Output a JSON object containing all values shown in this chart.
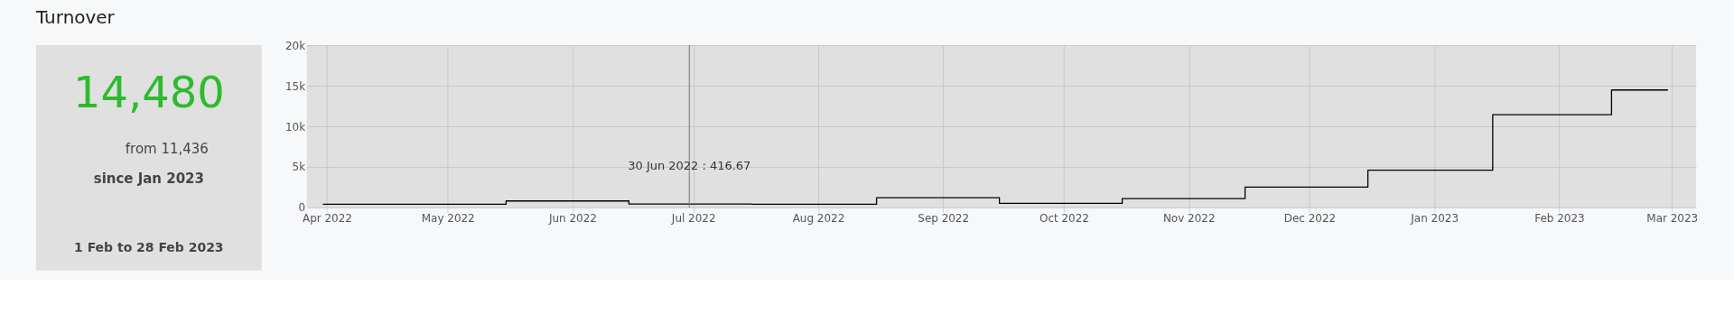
{
  "chart_data": {
    "type": "step",
    "title": "Turnover",
    "x": [
      "2022-03-31",
      "2022-04-30",
      "2022-05-31",
      "2022-06-30",
      "2022-07-31",
      "2022-08-31",
      "2022-09-30",
      "2022-10-31",
      "2022-11-30",
      "2022-12-31",
      "2023-01-31",
      "2023-02-28"
    ],
    "series": [
      {
        "color": "#000000",
        "values": [
          400,
          400,
          800,
          416.67,
          400,
          1200,
          500,
          1100,
          2500,
          4600,
          11436,
          14480
        ]
      }
    ],
    "xlim": [
      "2022-03-27",
      "2023-03-07"
    ],
    "xticks": [
      {
        "value": "2022-04",
        "label": "Apr 2022"
      },
      {
        "value": "2022-05",
        "label": "May 2022"
      },
      {
        "value": "2022-06",
        "label": "Jun 2022"
      },
      {
        "value": "2022-07",
        "label": "Jul 2022"
      },
      {
        "value": "2022-08",
        "label": "Aug 2022"
      },
      {
        "value": "2022-09",
        "label": "Sep 2022"
      },
      {
        "value": "2022-10",
        "label": "Oct 2022"
      },
      {
        "value": "2022-11",
        "label": "Nov 2022"
      },
      {
        "value": "2022-12",
        "label": "Dec 2022"
      },
      {
        "value": "2023-01",
        "label": "Jan 2023"
      },
      {
        "value": "2023-02",
        "label": "Feb 2023"
      },
      {
        "value": "2023-03",
        "label": "Mar 2023"
      }
    ],
    "ylim": [
      0,
      20000
    ],
    "yticks": [
      0,
      {
        "value": 5000,
        "label": "5k"
      },
      {
        "value": 10000,
        "label": "10k"
      },
      {
        "value": 15000,
        "label": "15k"
      },
      {
        "value": 20000,
        "label": "20k"
      }
    ],
    "grid": true,
    "ref_lines": [
      {
        "axis": "x",
        "value": "2022-06-30",
        "label": null,
        "color": "#777777"
      }
    ],
    "annotations": [
      "14,480",
      "from 11,436",
      "since Jan 2023",
      "1 Feb to 28 Feb 2023",
      {
        "text": "30 Jun 2022 : 416.67",
        "x": "2022-06-30",
        "y": 416.67
      }
    ]
  }
}
